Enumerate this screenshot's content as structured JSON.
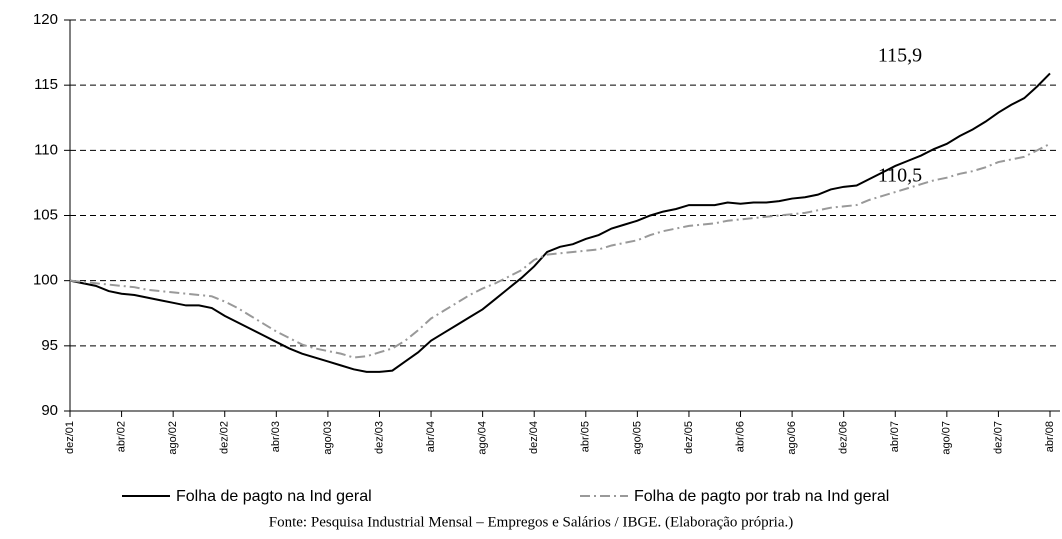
{
  "chart_data": {
    "type": "line",
    "categories": [
      "dez/01",
      null,
      null,
      null,
      "abr/02",
      null,
      null,
      null,
      "ago/02",
      null,
      null,
      null,
      "dez/02",
      null,
      null,
      null,
      "abr/03",
      null,
      null,
      null,
      "ago/03",
      null,
      null,
      null,
      "dez/03",
      null,
      null,
      null,
      "abr/04",
      null,
      null,
      null,
      "ago/04",
      null,
      null,
      null,
      "dez/04",
      null,
      null,
      null,
      "abr/05",
      null,
      null,
      null,
      "ago/05",
      null,
      null,
      null,
      "dez/05",
      null,
      null,
      null,
      "abr/06",
      null,
      null,
      null,
      "ago/06",
      null,
      null,
      null,
      "dez/06",
      null,
      null,
      null,
      "abr/07",
      null,
      null,
      null,
      "ago/07",
      null,
      null,
      null,
      "dez/07",
      null,
      null,
      null,
      "abr/08"
    ],
    "series": [
      {
        "name": "Folha de pagto na Ind geral",
        "color": "#000000",
        "values": [
          100,
          99.8,
          99.6,
          99.2,
          99.0,
          98.9,
          98.7,
          98.5,
          98.3,
          98.1,
          98.1,
          97.9,
          97.3,
          96.8,
          96.3,
          95.8,
          95.3,
          94.8,
          94.4,
          94.1,
          93.8,
          93.5,
          93.2,
          93.0,
          93.0,
          93.1,
          93.8,
          94.5,
          95.4,
          96.0,
          96.6,
          97.2,
          97.8,
          98.6,
          99.4,
          100.2,
          101.1,
          102.2,
          102.6,
          102.8,
          103.2,
          103.5,
          104.0,
          104.3,
          104.6,
          105.0,
          105.3,
          105.5,
          105.8,
          105.8,
          105.8,
          106.0,
          105.9,
          106.0,
          106.0,
          106.1,
          106.3,
          106.4,
          106.6,
          107.0,
          107.2,
          107.3,
          107.8,
          108.3,
          108.8,
          109.2,
          109.6,
          110.1,
          110.5,
          111.1,
          111.6,
          112.2,
          112.9,
          113.5,
          114.0,
          114.9,
          115.9
        ]
      },
      {
        "name": "Folha de pagto por trab na Ind geral",
        "color": "#999999",
        "values": [
          100,
          99.9,
          99.8,
          99.7,
          99.6,
          99.5,
          99.3,
          99.2,
          99.1,
          99.0,
          98.9,
          98.8,
          98.4,
          97.9,
          97.3,
          96.7,
          96.1,
          95.6,
          95.1,
          94.8,
          94.6,
          94.4,
          94.1,
          94.2,
          94.5,
          94.8,
          95.4,
          96.2,
          97.1,
          97.7,
          98.3,
          98.9,
          99.4,
          99.8,
          100.3,
          100.8,
          101.6,
          102.0,
          102.1,
          102.2,
          102.3,
          102.4,
          102.7,
          102.9,
          103.1,
          103.5,
          103.8,
          104.0,
          104.2,
          104.3,
          104.4,
          104.6,
          104.7,
          104.8,
          104.9,
          105.0,
          105.1,
          105.2,
          105.4,
          105.6,
          105.7,
          105.8,
          106.2,
          106.5,
          106.8,
          107.1,
          107.4,
          107.7,
          107.9,
          108.2,
          108.4,
          108.7,
          109.1,
          109.3,
          109.5,
          110.0,
          110.5
        ]
      }
    ],
    "annotations": [
      "115,9",
      "110,5"
    ],
    "ylim": [
      90,
      120
    ],
    "yticks": [
      90,
      95,
      100,
      105,
      110,
      115,
      120
    ],
    "grid": true,
    "source": "Fonte: Pesquisa Industrial Mensal – Empregos e Salários / IBGE. (Elaboração própria.)"
  }
}
